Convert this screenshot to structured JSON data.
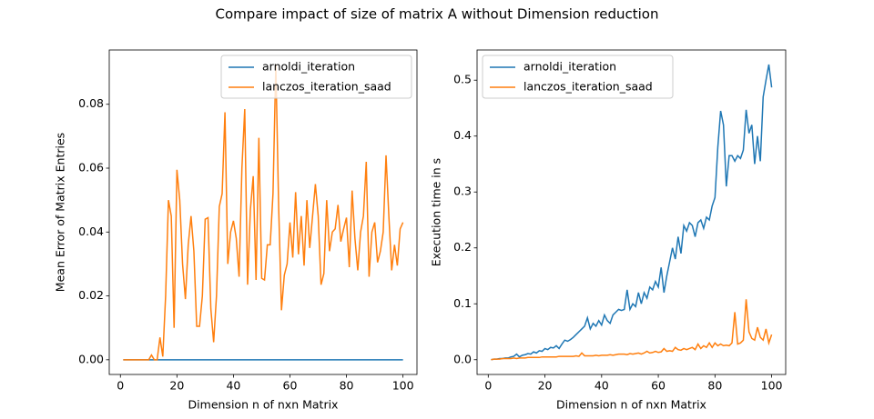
{
  "title": "Compare impact of size of matrix A without Dimension reduction",
  "chart_data": [
    {
      "type": "line",
      "xlabel": "Dimension n of nxn Matrix",
      "ylabel": "Mean Error of Matrix Entries",
      "legend": "upper right",
      "x": [
        1,
        2,
        3,
        4,
        5,
        6,
        7,
        8,
        9,
        10,
        11,
        12,
        13,
        14,
        15,
        16,
        17,
        18,
        19,
        20,
        21,
        22,
        23,
        24,
        25,
        26,
        27,
        28,
        29,
        30,
        31,
        32,
        33,
        34,
        35,
        36,
        37,
        38,
        39,
        40,
        41,
        42,
        43,
        44,
        45,
        46,
        47,
        48,
        49,
        50,
        51,
        52,
        53,
        54,
        55,
        56,
        57,
        58,
        59,
        60,
        61,
        62,
        63,
        64,
        65,
        66,
        67,
        68,
        69,
        70,
        71,
        72,
        73,
        74,
        75,
        76,
        77,
        78,
        79,
        80,
        81,
        82,
        83,
        84,
        85,
        86,
        87,
        88,
        89,
        90,
        91,
        92,
        93,
        94,
        95,
        96,
        97,
        98,
        99,
        100
      ],
      "xlim": [
        -3.95,
        104.95
      ],
      "xticks": [
        0,
        20,
        40,
        60,
        80,
        100
      ],
      "ylim": [
        -0.0046,
        0.097
      ],
      "yticks": [
        {
          "value": 0,
          "label": "0.00"
        },
        {
          "value": 0.02,
          "label": "0.02"
        },
        {
          "value": 0.04,
          "label": "0.04"
        },
        {
          "value": 0.06,
          "label": "0.06"
        },
        {
          "value": 0.08,
          "label": "0.08"
        }
      ],
      "series": [
        {
          "name": "arnoldi_iteration",
          "color": "#1f77b4",
          "values": [
            0,
            0,
            0,
            0,
            0,
            0,
            0,
            0,
            0,
            0,
            0,
            0,
            0,
            0,
            0,
            0,
            0,
            0,
            0,
            0,
            0,
            0,
            0,
            0,
            0,
            0,
            0,
            0,
            0,
            0,
            0,
            0,
            0,
            0,
            0,
            0,
            0,
            0,
            0,
            0,
            0,
            0,
            0,
            0,
            0,
            0,
            0,
            0,
            0,
            0,
            0,
            0,
            0,
            0,
            0,
            0,
            0,
            0,
            0,
            0,
            0,
            0,
            0,
            0,
            0,
            0,
            0,
            0,
            0,
            0,
            0,
            0,
            0,
            0,
            0,
            0,
            0,
            0,
            0,
            0,
            0,
            0,
            0,
            0,
            0,
            0,
            0,
            0,
            0,
            0,
            0,
            0,
            0,
            0,
            0,
            0,
            0,
            0,
            0,
            0
          ]
        },
        {
          "name": "lanczos_iteration_saad",
          "color": "#ff7f0e",
          "values": [
            0,
            0,
            0,
            0,
            0,
            0,
            0,
            0,
            0,
            0,
            0.0015,
            0,
            0,
            0.007,
            0.001,
            0.02,
            0.05,
            0.045,
            0.01,
            0.0595,
            0.05,
            0.03,
            0.019,
            0.036,
            0.045,
            0.034,
            0.0105,
            0.0105,
            0.02,
            0.044,
            0.0445,
            0.016,
            0.0055,
            0.02,
            0.048,
            0.052,
            0.0775,
            0.03,
            0.04,
            0.0435,
            0.038,
            0.026,
            0.06,
            0.0785,
            0.0235,
            0.047,
            0.0575,
            0.025,
            0.0695,
            0.0255,
            0.025,
            0.036,
            0.036,
            0.052,
            0.0925,
            0.048,
            0.0155,
            0.0265,
            0.03,
            0.043,
            0.032,
            0.0525,
            0.033,
            0.045,
            0.0295,
            0.05,
            0.035,
            0.045,
            0.055,
            0.045,
            0.0235,
            0.027,
            0.05,
            0.034,
            0.04,
            0.041,
            0.0485,
            0.037,
            0.041,
            0.0445,
            0.029,
            0.053,
            0.038,
            0.028,
            0.04,
            0.045,
            0.062,
            0.026,
            0.04,
            0.043,
            0.0305,
            0.034,
            0.04,
            0.064,
            0.045,
            0.028,
            0.036,
            0.0295,
            0.041,
            0.043
          ]
        }
      ]
    },
    {
      "type": "line",
      "xlabel": "Dimension n of nxn Matrix",
      "ylabel": "Execution time in s",
      "legend": "upper left",
      "x": [
        1,
        2,
        3,
        4,
        5,
        6,
        7,
        8,
        9,
        10,
        11,
        12,
        13,
        14,
        15,
        16,
        17,
        18,
        19,
        20,
        21,
        22,
        23,
        24,
        25,
        26,
        27,
        28,
        29,
        30,
        31,
        32,
        33,
        34,
        35,
        36,
        37,
        38,
        39,
        40,
        41,
        42,
        43,
        44,
        45,
        46,
        47,
        48,
        49,
        50,
        51,
        52,
        53,
        54,
        55,
        56,
        57,
        58,
        59,
        60,
        61,
        62,
        63,
        64,
        65,
        66,
        67,
        68,
        69,
        70,
        71,
        72,
        73,
        74,
        75,
        76,
        77,
        78,
        79,
        80,
        81,
        82,
        83,
        84,
        85,
        86,
        87,
        88,
        89,
        90,
        91,
        92,
        93,
        94,
        95,
        96,
        97,
        98,
        99,
        100
      ],
      "xlim": [
        -3.95,
        104.95
      ],
      "xticks": [
        0,
        20,
        40,
        60,
        80,
        100
      ],
      "ylim": [
        -0.0264,
        0.554
      ],
      "yticks": [
        {
          "value": 0,
          "label": "0.0"
        },
        {
          "value": 0.1,
          "label": "0.1"
        },
        {
          "value": 0.2,
          "label": "0.2"
        },
        {
          "value": 0.3,
          "label": "0.3"
        },
        {
          "value": 0.4,
          "label": "0.4"
        },
        {
          "value": 0.5,
          "label": "0.5"
        }
      ],
      "series": [
        {
          "name": "arnoldi_iteration",
          "color": "#1f77b4",
          "values": [
            0,
            0.001,
            0.001,
            0.002,
            0.002,
            0.003,
            0.003,
            0.005,
            0.006,
            0.01,
            0.005,
            0.008,
            0.009,
            0.011,
            0.01,
            0.014,
            0.012,
            0.016,
            0.015,
            0.02,
            0.018,
            0.022,
            0.021,
            0.025,
            0.02,
            0.028,
            0.035,
            0.033,
            0.036,
            0.04,
            0.045,
            0.05,
            0.055,
            0.06,
            0.075,
            0.055,
            0.065,
            0.06,
            0.07,
            0.062,
            0.08,
            0.07,
            0.065,
            0.08,
            0.085,
            0.09,
            0.088,
            0.09,
            0.125,
            0.09,
            0.1,
            0.095,
            0.12,
            0.1,
            0.12,
            0.11,
            0.13,
            0.125,
            0.14,
            0.13,
            0.165,
            0.12,
            0.15,
            0.175,
            0.2,
            0.18,
            0.22,
            0.19,
            0.24,
            0.23,
            0.245,
            0.24,
            0.22,
            0.245,
            0.25,
            0.235,
            0.255,
            0.25,
            0.275,
            0.29,
            0.38,
            0.445,
            0.42,
            0.31,
            0.365,
            0.365,
            0.355,
            0.365,
            0.36,
            0.375,
            0.447,
            0.405,
            0.42,
            0.35,
            0.4,
            0.355,
            0.47,
            0.5,
            0.528,
            0.487
          ]
        },
        {
          "name": "lanczos_iteration_saad",
          "color": "#ff7f0e",
          "values": [
            0,
            0.001,
            0.001,
            0.001,
            0.002,
            0.002,
            0.002,
            0.002,
            0.003,
            0.002,
            0.003,
            0.003,
            0.003,
            0.004,
            0.004,
            0.004,
            0.004,
            0.004,
            0.005,
            0.005,
            0.005,
            0.005,
            0.005,
            0.005,
            0.006,
            0.006,
            0.006,
            0.006,
            0.006,
            0.006,
            0.007,
            0.006,
            0.012,
            0.007,
            0.007,
            0.007,
            0.007,
            0.008,
            0.007,
            0.008,
            0.008,
            0.008,
            0.009,
            0.008,
            0.009,
            0.01,
            0.01,
            0.01,
            0.009,
            0.011,
            0.01,
            0.011,
            0.012,
            0.01,
            0.012,
            0.015,
            0.012,
            0.013,
            0.015,
            0.013,
            0.014,
            0.02,
            0.015,
            0.016,
            0.015,
            0.022,
            0.018,
            0.017,
            0.02,
            0.018,
            0.02,
            0.022,
            0.018,
            0.028,
            0.02,
            0.025,
            0.022,
            0.03,
            0.022,
            0.03,
            0.025,
            0.028,
            0.025,
            0.026,
            0.025,
            0.03,
            0.085,
            0.028,
            0.03,
            0.035,
            0.108,
            0.05,
            0.038,
            0.035,
            0.058,
            0.04,
            0.035,
            0.055,
            0.03,
            0.045
          ]
        }
      ]
    }
  ]
}
